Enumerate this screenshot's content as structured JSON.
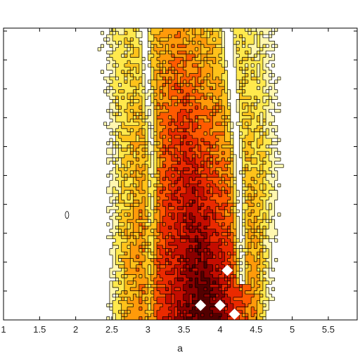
{
  "chart_data": {
    "type": "heatmap",
    "subtype": "filled-contour",
    "title": "",
    "xlabel": "a",
    "ylabel": "",
    "xlim": [
      1,
      5.9
    ],
    "ylim": [
      0,
      1
    ],
    "x_ticks": [
      1,
      1.5,
      2,
      2.5,
      3,
      3.5,
      4,
      4.5,
      5,
      5.5
    ],
    "x_tick_labels": [
      "1",
      "1.5",
      "2",
      "2.5",
      "3",
      "3.5",
      "4",
      "4.5",
      "5",
      "5.5"
    ],
    "y_tick_count": 10,
    "y_tick_labels_visible": false,
    "colormap": "hot (reversed)",
    "colors": {
      "background": "#ffffff",
      "contour_line": "#000000",
      "levels": [
        "#ffffff",
        "#fff7b0",
        "#ffe94d",
        "#ffc21a",
        "#ff9a0a",
        "#ff5a00",
        "#ea2a00",
        "#c40d00",
        "#8a0000",
        "#520000"
      ]
    },
    "band": {
      "comment_free": true,
      "left_edge": [
        [
          0.0,
          2.45
        ],
        [
          0.5,
          2.43
        ],
        [
          1.0,
          2.3
        ]
      ],
      "right_edge": [
        [
          0.0,
          4.7
        ],
        [
          0.5,
          4.85
        ],
        [
          1.0,
          4.8
        ]
      ],
      "peak_center": [
        [
          0.0,
          3.85
        ],
        [
          0.5,
          3.55
        ],
        [
          1.0,
          3.4
        ]
      ],
      "pale_valley_a": [
        [
          0.0,
          3.02
        ],
        [
          0.55,
          3.06
        ],
        [
          1.0,
          2.95
        ]
      ],
      "pale_valley_b": [
        [
          0.15,
          4.3
        ],
        [
          0.55,
          4.25
        ],
        [
          1.0,
          4.1
        ]
      ]
    },
    "isolated_contour": {
      "a": 1.88,
      "y": 0.36
    },
    "white_spots": [
      {
        "a": 3.73,
        "y": 0.05
      },
      {
        "a": 4.0,
        "y": 0.05
      },
      {
        "a": 4.2,
        "y": 0.02
      },
      {
        "a": 4.1,
        "y": 0.17
      }
    ]
  }
}
